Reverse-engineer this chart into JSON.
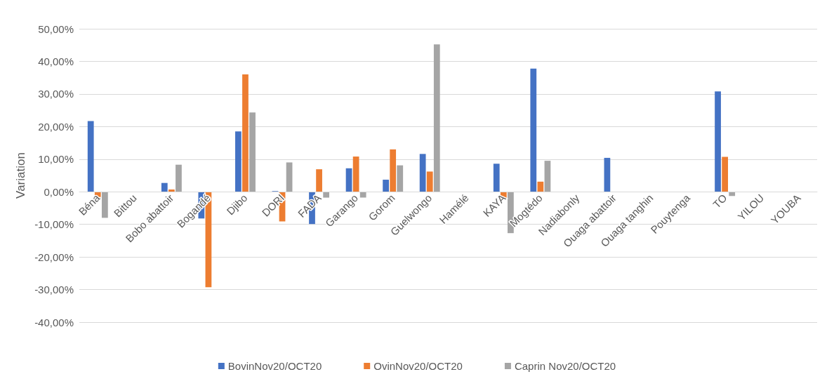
{
  "chart_data": {
    "type": "bar",
    "ylabel": "Variation",
    "categories": [
      "Béna",
      "Bittou",
      "Bobo abattoir",
      "Bogandé",
      "Djibo",
      "DORI",
      "FADA",
      "Garango",
      "Gorom",
      "Guelwongo",
      "Hamélé",
      "KAYA",
      "Mogtédo",
      "Nadiabonly",
      "Ouaga abattoir",
      "Ouaga tanghin",
      "Pouytenga",
      "TO",
      "YILOU",
      "YOUBA"
    ],
    "series": [
      {
        "name": "BovinNov20/OCT20",
        "color": "#4472c4",
        "values": [
          21.7,
          null,
          2.7,
          -8.2,
          18.5,
          0.2,
          -9.9,
          7.2,
          3.7,
          11.6,
          null,
          8.6,
          37.8,
          null,
          10.4,
          null,
          null,
          30.8,
          null,
          null
        ]
      },
      {
        "name": "OvinNov20/OCT20",
        "color": "#ed7d31",
        "values": [
          -1.8,
          null,
          0.7,
          -29.3,
          36.0,
          -9.1,
          6.9,
          10.8,
          13.0,
          6.2,
          null,
          -2.1,
          3.1,
          null,
          null,
          null,
          null,
          10.7,
          null,
          null
        ]
      },
      {
        "name": "Caprin Nov20/OCT20",
        "color": "#a5a5a5",
        "values": [
          -8.0,
          null,
          8.3,
          null,
          24.3,
          9.0,
          -1.8,
          -1.8,
          8.1,
          45.2,
          null,
          -12.7,
          9.5,
          null,
          null,
          null,
          null,
          -1.3,
          null,
          null
        ]
      }
    ],
    "ylim": [
      -40,
      50
    ],
    "yticks": [
      {
        "value": -40,
        "label": "-40,00%"
      },
      {
        "value": -30,
        "label": "-30,00%"
      },
      {
        "value": -20,
        "label": "-20,00%"
      },
      {
        "value": -10,
        "label": "-10,00%"
      },
      {
        "value": 0,
        "label": "0,00%"
      },
      {
        "value": 10,
        "label": "10,00%"
      },
      {
        "value": 20,
        "label": "20,00%"
      },
      {
        "value": 30,
        "label": "30,00%"
      },
      {
        "value": 40,
        "label": "40,00%"
      },
      {
        "value": 50,
        "label": "50,00%"
      }
    ],
    "grid": "y",
    "legend": "bottom"
  }
}
